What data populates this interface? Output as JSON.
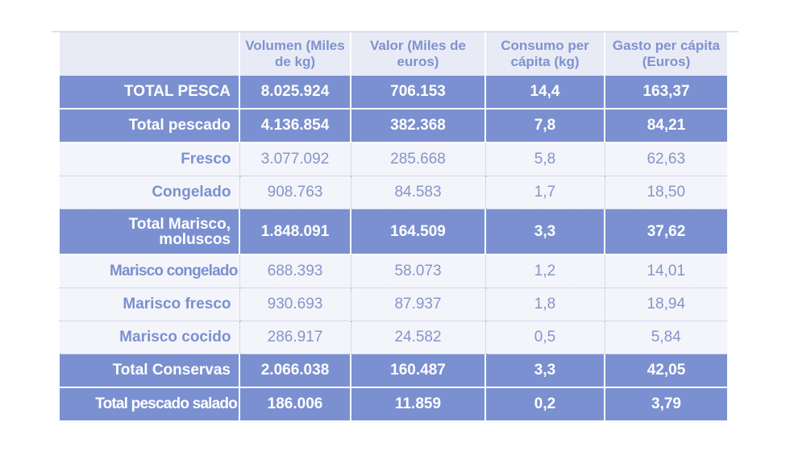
{
  "headers": [
    "",
    "Volumen (Miles de kg)",
    "Valor (Miles de euros)",
    "Consumo per cápita (kg)",
    "Gasto per cápita (Euros)"
  ],
  "rows": [
    {
      "label": "TOTAL PESCA",
      "volumen": "8.025.924",
      "valor": "706.153",
      "consumo": "14,4",
      "gasto": "163,37",
      "total": true
    },
    {
      "label": "Total pescado",
      "volumen": "4.136.854",
      "valor": "382.368",
      "consumo": "7,8",
      "gasto": "84,21",
      "total": true
    },
    {
      "label": "Fresco",
      "volumen": "3.077.092",
      "valor": "285.668",
      "consumo": "5,8",
      "gasto": "62,63",
      "total": false
    },
    {
      "label": "Congelado",
      "volumen": "908.763",
      "valor": "84.583",
      "consumo": "1,7",
      "gasto": "18,50",
      "total": false
    },
    {
      "label": "Total Marisco, moluscos",
      "volumen": "1.848.091",
      "valor": "164.509",
      "consumo": "3,3",
      "gasto": "37,62",
      "total": true
    },
    {
      "label": "Marisco congelado",
      "volumen": "688.393",
      "valor": "58.073",
      "consumo": "1,2",
      "gasto": "14,01",
      "total": false
    },
    {
      "label": "Marisco fresco",
      "volumen": "930.693",
      "valor": "87.937",
      "consumo": "1,8",
      "gasto": "18,94",
      "total": false
    },
    {
      "label": "Marisco cocido",
      "volumen": "286.917",
      "valor": "24.582",
      "consumo": "0,5",
      "gasto": "5,84",
      "total": false
    },
    {
      "label": "Total Conservas",
      "volumen": "2.066.038",
      "valor": "160.487",
      "consumo": "3,3",
      "gasto": "42,05",
      "total": true
    },
    {
      "label": "Total pescado salado",
      "volumen": "186.006",
      "valor": "11.859",
      "consumo": "0,2",
      "gasto": "3,79",
      "total": true
    }
  ],
  "colors": {
    "total_row_bg": "#7b90d0",
    "sub_row_bg": "#f4f5fb",
    "header_bg": "#e8ebf6",
    "header_text": "#7f92cf"
  }
}
